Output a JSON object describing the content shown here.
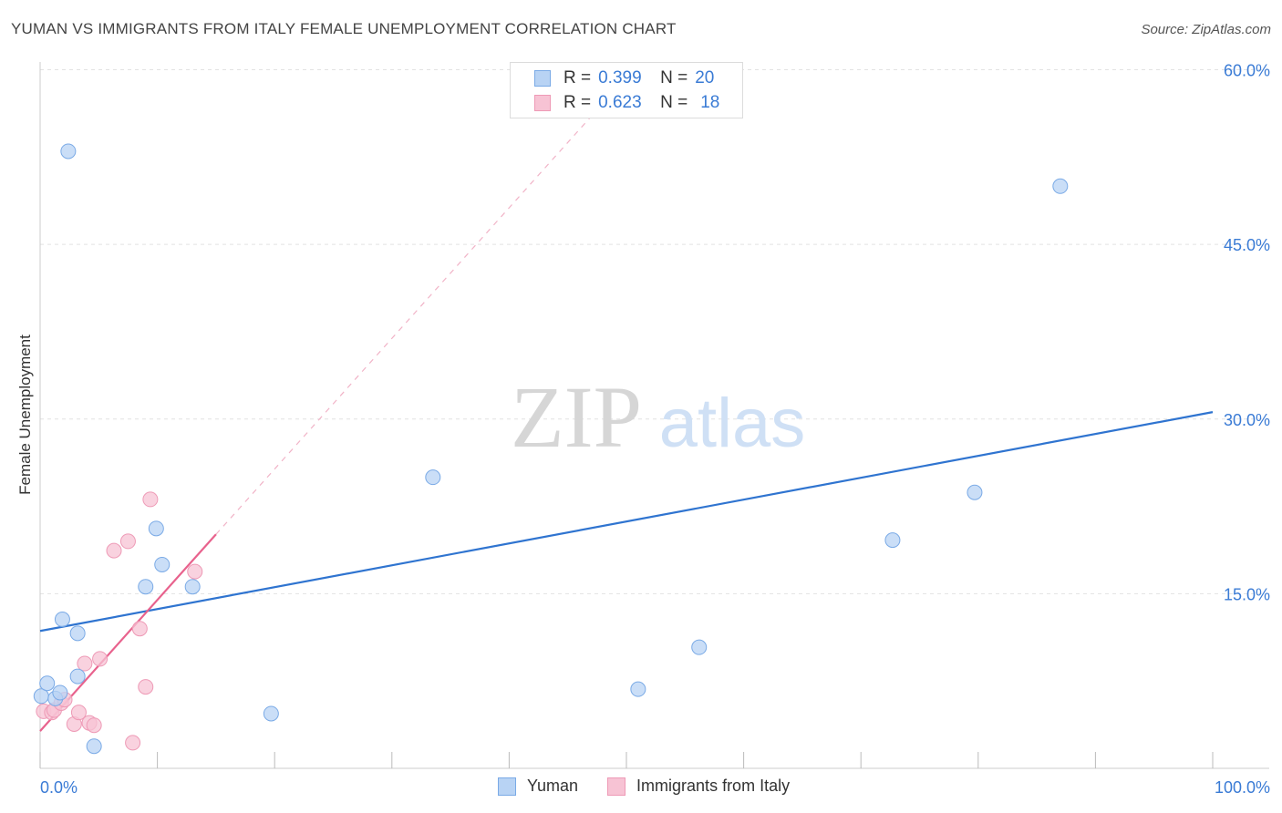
{
  "header": {
    "title": "YUMAN VS IMMIGRANTS FROM ITALY FEMALE UNEMPLOYMENT CORRELATION CHART",
    "source": "Source: ZipAtlas.com"
  },
  "watermark": {
    "zip": "ZIP",
    "atlas": "atlas"
  },
  "legend": {
    "r_label": "R =",
    "n_label": "N =",
    "rows": [
      {
        "name": "Yuman",
        "r": "0.399",
        "n": "20"
      },
      {
        "name": "Immigrants from Italy",
        "r": "0.623",
        "n": "18"
      }
    ]
  },
  "colors": {
    "yuman_fill": "#b8d3f4",
    "yuman_stroke": "#7aaae6",
    "yuman_line": "#2f74d0",
    "italy_fill": "#f7c3d4",
    "italy_stroke": "#ee9ab6",
    "italy_line": "#e8628d",
    "tick_label": "#3a7bd5",
    "grid": "#e2e2e2"
  },
  "chart_data": {
    "type": "scatter",
    "title": "YUMAN VS IMMIGRANTS FROM ITALY FEMALE UNEMPLOYMENT CORRELATION CHART",
    "xlabel": "",
    "ylabel": "Female Unemployment",
    "xlim": [
      0,
      100
    ],
    "ylim": [
      0,
      62
    ],
    "x_tick_labels": [
      "0.0%",
      "100.0%"
    ],
    "y_ticks": [
      15,
      30,
      45,
      60
    ],
    "y_tick_labels": [
      "15.0%",
      "30.0%",
      "45.0%",
      "60.0%"
    ],
    "grid": true,
    "legend_position": "top-center",
    "series": [
      {
        "name": "Yuman",
        "points": [
          [
            0.1,
            6.2
          ],
          [
            0.6,
            7.3
          ],
          [
            1.3,
            6.0
          ],
          [
            1.7,
            6.5
          ],
          [
            1.9,
            12.8
          ],
          [
            2.4,
            53.0
          ],
          [
            3.2,
            7.9
          ],
          [
            3.2,
            11.6
          ],
          [
            4.6,
            1.9
          ],
          [
            9.0,
            15.6
          ],
          [
            9.9,
            20.6
          ],
          [
            10.4,
            17.5
          ],
          [
            13.0,
            15.6
          ],
          [
            19.7,
            4.7
          ],
          [
            33.5,
            25.0
          ],
          [
            51.0,
            6.8
          ],
          [
            56.2,
            10.4
          ],
          [
            72.7,
            19.6
          ],
          [
            79.7,
            23.7
          ],
          [
            87.0,
            50.0
          ]
        ],
        "trend": {
          "x": [
            0,
            100
          ],
          "y": [
            11.8,
            30.6
          ],
          "style": "solid"
        }
      },
      {
        "name": "Immigrants from Italy",
        "points": [
          [
            0.3,
            4.9
          ],
          [
            1.0,
            4.8
          ],
          [
            1.2,
            5.0
          ],
          [
            1.8,
            5.6
          ],
          [
            2.1,
            5.9
          ],
          [
            2.9,
            3.8
          ],
          [
            3.3,
            4.8
          ],
          [
            3.8,
            9.0
          ],
          [
            4.2,
            3.9
          ],
          [
            4.6,
            3.7
          ],
          [
            5.1,
            9.4
          ],
          [
            6.3,
            18.7
          ],
          [
            7.5,
            19.5
          ],
          [
            7.9,
            2.2
          ],
          [
            8.5,
            12.0
          ],
          [
            9.0,
            7.0
          ],
          [
            9.4,
            23.1
          ],
          [
            13.2,
            16.9
          ]
        ],
        "trend": {
          "x": [
            0,
            15
          ],
          "y": [
            3.2,
            20.1
          ],
          "style": "solid"
        },
        "trend_extension": {
          "x": [
            15,
            47
          ],
          "y": [
            20.1,
            56.0
          ],
          "style": "dashed"
        }
      }
    ]
  }
}
